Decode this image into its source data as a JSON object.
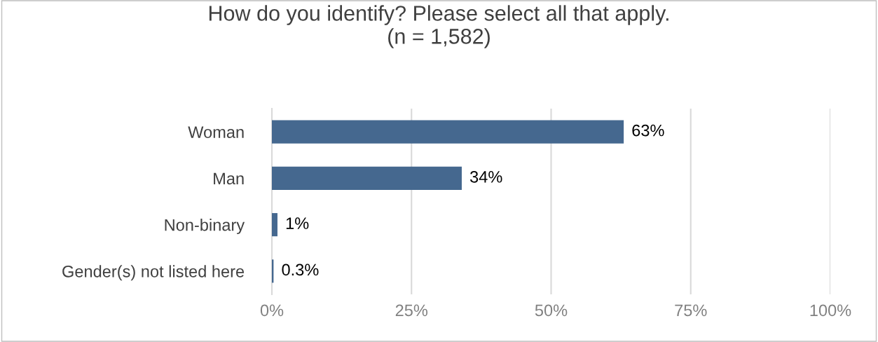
{
  "chart_data": {
    "type": "bar",
    "orientation": "horizontal",
    "title": "How do you identify? Please select all that apply.\n(n = 1,582)",
    "categories": [
      "Woman",
      "Man",
      "Non-binary",
      "Gender(s) not listed here"
    ],
    "values": [
      63,
      34,
      1,
      0.3
    ],
    "value_labels": [
      "63%",
      "34%",
      "1%",
      "0.3%"
    ],
    "color": "#45688f",
    "xlim": [
      0,
      100
    ],
    "xticks": [
      {
        "value": 0,
        "label": "0%"
      },
      {
        "value": 25,
        "label": "25%"
      },
      {
        "value": 50,
        "label": "50%"
      },
      {
        "value": 75,
        "label": "75%"
      },
      {
        "value": 100,
        "label": "100%"
      }
    ],
    "grid": "x",
    "legend": false
  }
}
